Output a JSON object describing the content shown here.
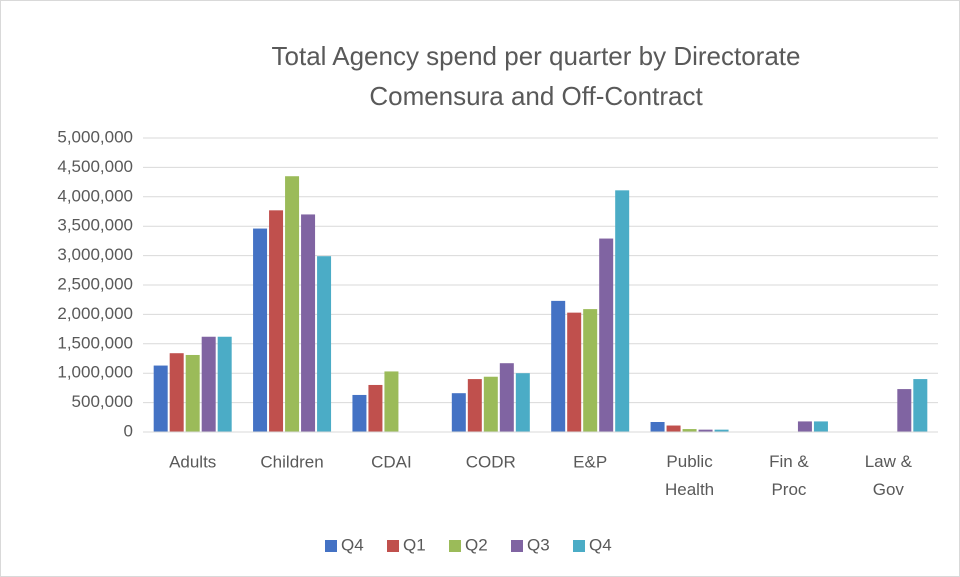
{
  "chart_data": {
    "type": "bar",
    "title": "Total Agency spend per quarter by Directorate",
    "subtitle": "Comensura and Off-Contract",
    "categories": [
      "Adults",
      "Children",
      "CDAI",
      "CODR",
      "E&P",
      "Public Health",
      "Fin & Proc",
      "Law & Gov"
    ],
    "series": [
      {
        "name": "Q4",
        "color": "#4472c4",
        "values": [
          1130000,
          3460000,
          630000,
          660000,
          2230000,
          170000,
          0,
          0
        ]
      },
      {
        "name": "Q1",
        "color": "#c0504d",
        "values": [
          1340000,
          3770000,
          800000,
          900000,
          2030000,
          110000,
          0,
          0
        ]
      },
      {
        "name": "Q2",
        "color": "#9bbb59",
        "values": [
          1310000,
          4350000,
          1030000,
          940000,
          2090000,
          50000,
          0,
          0
        ]
      },
      {
        "name": "Q3",
        "color": "#8064a2",
        "values": [
          1620000,
          3700000,
          0,
          1170000,
          3290000,
          40000,
          180000,
          730000
        ]
      },
      {
        "name": "Q4",
        "color": "#4bacc6",
        "values": [
          1620000,
          2990000,
          0,
          1000000,
          4110000,
          40000,
          180000,
          900000
        ]
      }
    ],
    "ylim": [
      0,
      5000000
    ],
    "yticks": [
      0,
      {
        "value": 500000,
        "label": "500,000"
      },
      {
        "value": 1000000,
        "label": "1,000,000"
      },
      {
        "value": 1500000,
        "label": "1,500,000"
      },
      {
        "value": 2000000,
        "label": "2,000,000"
      },
      {
        "value": 2500000,
        "label": "2,500,000"
      },
      {
        "value": 3000000,
        "label": "3,000,000"
      },
      {
        "value": 3500000,
        "label": "3,500,000"
      },
      {
        "value": 4000000,
        "label": "4,000,000"
      },
      {
        "value": 4500000,
        "label": "4,500,000"
      },
      {
        "value": 5000000,
        "label": "5,000,000"
      }
    ],
    "grid": true,
    "legend": "bottom"
  }
}
